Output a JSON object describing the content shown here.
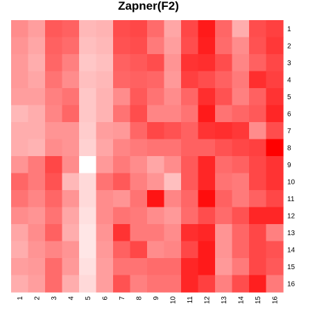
{
  "chart_data": {
    "type": "heatmap",
    "title": "Zapner(F2)",
    "x_labels": [
      "1",
      "2",
      "3",
      "4",
      "5",
      "6",
      "7",
      "8",
      "9",
      "10",
      "11",
      "12",
      "13",
      "14",
      "15",
      "16"
    ],
    "y_labels": [
      "1",
      "2",
      "3",
      "4",
      "5",
      "6",
      "7",
      "8",
      "9",
      "10",
      "11",
      "12",
      "13",
      "14",
      "15",
      "16"
    ],
    "value_range": [
      0,
      1
    ],
    "color_low": "#ffffff",
    "color_high": "#ff0000",
    "grid": false,
    "legend": "none",
    "values": [
      [
        0.45,
        0.38,
        0.65,
        0.62,
        0.28,
        0.3,
        0.7,
        0.72,
        0.58,
        0.35,
        0.72,
        0.9,
        0.6,
        0.32,
        0.7,
        0.75
      ],
      [
        0.42,
        0.35,
        0.62,
        0.58,
        0.25,
        0.28,
        0.68,
        0.7,
        0.52,
        0.38,
        0.7,
        0.88,
        0.58,
        0.45,
        0.68,
        0.78
      ],
      [
        0.4,
        0.32,
        0.6,
        0.5,
        0.22,
        0.25,
        0.62,
        0.65,
        0.7,
        0.42,
        0.8,
        0.82,
        0.7,
        0.48,
        0.62,
        0.72
      ],
      [
        0.4,
        0.35,
        0.55,
        0.45,
        0.25,
        0.28,
        0.6,
        0.62,
        0.6,
        0.4,
        0.75,
        0.7,
        0.62,
        0.52,
        0.82,
        0.75
      ],
      [
        0.38,
        0.38,
        0.5,
        0.55,
        0.22,
        0.3,
        0.45,
        0.65,
        0.55,
        0.45,
        0.6,
        0.82,
        0.68,
        0.5,
        0.62,
        0.8
      ],
      [
        0.28,
        0.32,
        0.48,
        0.6,
        0.22,
        0.3,
        0.55,
        0.7,
        0.48,
        0.48,
        0.55,
        0.9,
        0.55,
        0.6,
        0.65,
        0.85
      ],
      [
        0.32,
        0.32,
        0.42,
        0.42,
        0.2,
        0.38,
        0.4,
        0.6,
        0.72,
        0.68,
        0.62,
        0.8,
        0.82,
        0.78,
        0.45,
        0.7
      ],
      [
        0.32,
        0.3,
        0.45,
        0.42,
        0.18,
        0.35,
        0.48,
        0.52,
        0.55,
        0.55,
        0.62,
        0.62,
        0.68,
        0.72,
        0.75,
        1.0
      ],
      [
        0.42,
        0.52,
        0.72,
        0.45,
        0.0,
        0.4,
        0.52,
        0.45,
        0.35,
        0.45,
        0.65,
        0.85,
        0.58,
        0.62,
        0.72,
        0.8
      ],
      [
        0.6,
        0.52,
        0.68,
        0.28,
        0.15,
        0.55,
        0.65,
        0.5,
        0.42,
        0.25,
        0.65,
        0.85,
        0.55,
        0.52,
        0.72,
        0.8
      ],
      [
        0.55,
        0.48,
        0.6,
        0.42,
        0.15,
        0.45,
        0.42,
        0.55,
        0.92,
        0.48,
        0.6,
        0.95,
        0.62,
        0.52,
        0.62,
        0.72
      ],
      [
        0.45,
        0.42,
        0.55,
        0.35,
        0.12,
        0.45,
        0.55,
        0.52,
        0.45,
        0.4,
        0.58,
        0.7,
        0.58,
        0.68,
        0.85,
        0.85
      ],
      [
        0.35,
        0.45,
        0.62,
        0.32,
        0.1,
        0.42,
        0.8,
        0.52,
        0.52,
        0.45,
        0.82,
        0.85,
        0.42,
        0.6,
        0.72,
        0.5
      ],
      [
        0.32,
        0.42,
        0.48,
        0.42,
        0.1,
        0.4,
        0.62,
        0.72,
        0.45,
        0.48,
        0.72,
        0.9,
        0.42,
        0.6,
        0.72,
        0.68
      ],
      [
        0.38,
        0.4,
        0.58,
        0.4,
        0.12,
        0.38,
        0.55,
        0.55,
        0.58,
        0.58,
        0.85,
        0.9,
        0.4,
        0.52,
        0.72,
        0.65
      ],
      [
        0.32,
        0.38,
        0.58,
        0.32,
        0.15,
        0.38,
        0.68,
        0.5,
        0.55,
        0.55,
        0.85,
        0.75,
        0.5,
        0.7,
        0.88,
        0.52
      ]
    ]
  }
}
